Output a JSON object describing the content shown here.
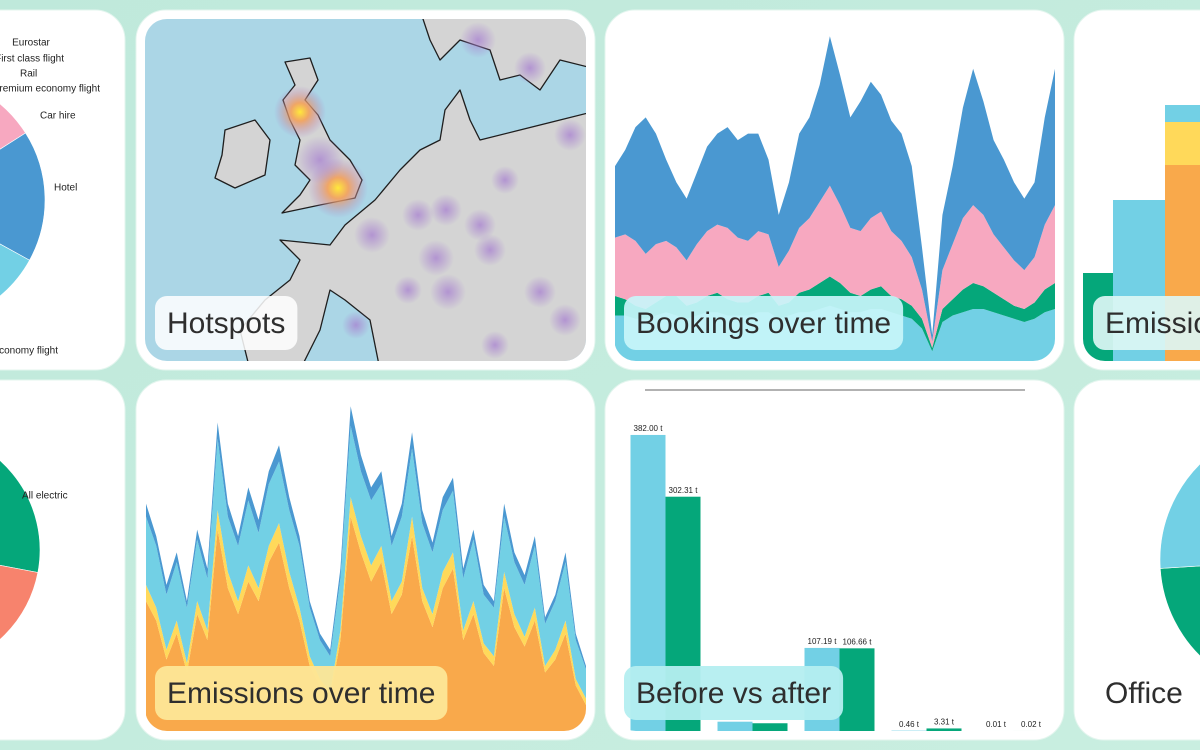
{
  "chart_data": [
    {
      "type": "pie",
      "categories": [
        "Eurostar",
        "First class flight",
        "Rail",
        "Premium economy flight",
        "Car hire",
        "Hotel",
        "Economy flight"
      ],
      "values": [
        0.5,
        0.5,
        1,
        5,
        9,
        17,
        67
      ],
      "colors": [
        "#05a77a",
        "#f7836d",
        "#8bd3a0",
        "#ffd95a",
        "#f7a8c0",
        "#4a98d1",
        "#72d0e5"
      ]
    },
    {
      "type": "map",
      "title": "Hotspots"
    },
    {
      "type": "area",
      "title": "Bookings over time",
      "ylim": [
        0,
        105
      ],
      "series": [
        {
          "color": "#72d0e5",
          "values": [
            14,
            14,
            13,
            13,
            14,
            15,
            14,
            13,
            14,
            15,
            15,
            14,
            14,
            14,
            15,
            15,
            13,
            14,
            15,
            15,
            16,
            17,
            16,
            15,
            15,
            16,
            16,
            15,
            14,
            13,
            10,
            3,
            12,
            14,
            15,
            16,
            16,
            15,
            14,
            13,
            12,
            13,
            15,
            16
          ]
        },
        {
          "color": "#05a77a",
          "values": [
            6,
            5,
            4,
            3,
            4,
            5,
            6,
            4,
            4,
            5,
            6,
            5,
            4,
            4,
            5,
            6,
            4,
            4,
            6,
            7,
            8,
            9,
            8,
            6,
            5,
            6,
            7,
            5,
            5,
            4,
            3,
            1,
            4,
            5,
            7,
            8,
            7,
            6,
            5,
            4,
            4,
            5,
            7,
            8
          ]
        },
        {
          "color": "#f7a8c0",
          "values": [
            18,
            20,
            20,
            17,
            18,
            17,
            15,
            14,
            18,
            20,
            21,
            22,
            20,
            19,
            20,
            18,
            12,
            16,
            20,
            22,
            25,
            28,
            24,
            20,
            20,
            22,
            23,
            20,
            18,
            15,
            9,
            2,
            12,
            17,
            22,
            24,
            22,
            18,
            16,
            14,
            12,
            14,
            20,
            24
          ]
        },
        {
          "color": "#4a98d1",
          "values": [
            22,
            26,
            35,
            42,
            34,
            25,
            20,
            19,
            22,
            26,
            28,
            31,
            30,
            33,
            30,
            23,
            16,
            21,
            29,
            31,
            36,
            46,
            40,
            34,
            40,
            42,
            36,
            34,
            33,
            28,
            13,
            2,
            17,
            24,
            34,
            42,
            35,
            29,
            27,
            24,
            22,
            23,
            33,
            42
          ]
        }
      ]
    },
    {
      "type": "bar",
      "title": "Emissions",
      "stacked": true,
      "categories": [
        null,
        null,
        null
      ],
      "ylim": [
        0,
        340
      ],
      "series": [
        {
          "color": "#05a77a",
          "values": [
            88,
            0,
            0
          ]
        },
        {
          "color": "#f9a94b",
          "values": [
            0,
            0,
            196
          ]
        },
        {
          "color": "#ffd95a",
          "values": [
            0,
            0,
            43
          ]
        },
        {
          "color": "#72d0e5",
          "values": [
            0,
            161,
            17
          ]
        }
      ]
    },
    {
      "type": "pie",
      "categories": [
        "All electric",
        null,
        null
      ],
      "values": [
        28,
        19,
        53
      ],
      "colors": [
        "#05a77a",
        "#f7836d",
        "#72d0e5"
      ]
    },
    {
      "type": "area",
      "title": "Emissions over time",
      "ylim": [
        0,
        105
      ],
      "series": [
        {
          "color": "#f9a94b",
          "values": [
            40,
            34,
            22,
            30,
            18,
            36,
            28,
            62,
            44,
            36,
            46,
            40,
            52,
            58,
            44,
            34,
            20,
            14,
            10,
            28,
            66,
            55,
            46,
            52,
            36,
            42,
            60,
            40,
            32,
            44,
            50,
            28,
            36,
            24,
            20,
            44,
            32,
            26,
            34,
            18,
            22,
            30,
            14,
            8
          ]
        },
        {
          "color": "#ffd95a",
          "values": [
            5,
            4,
            3,
            4,
            3,
            4,
            3,
            6,
            5,
            4,
            5,
            4,
            5,
            6,
            5,
            4,
            3,
            2,
            2,
            3,
            6,
            5,
            5,
            5,
            4,
            4,
            6,
            4,
            4,
            5,
            5,
            3,
            4,
            3,
            3,
            5,
            4,
            3,
            4,
            2,
            3,
            4,
            2,
            2
          ]
        },
        {
          "color": "#72d0e5",
          "values": [
            21,
            19,
            17,
            18,
            17,
            19,
            16,
            22,
            17,
            17,
            20,
            17,
            19,
            19,
            19,
            19,
            15,
            12,
            11,
            16,
            22,
            20,
            20,
            19,
            17,
            20,
            21,
            20,
            19,
            19,
            19,
            16,
            19,
            15,
            15,
            17,
            16,
            16,
            19,
            13,
            15,
            18,
            12,
            9
          ]
        },
        {
          "color": "#4a98d1",
          "values": [
            4,
            3,
            3,
            3,
            2,
            3,
            3,
            5,
            4,
            3,
            4,
            4,
            4,
            5,
            4,
            3,
            2,
            2,
            2,
            3,
            6,
            5,
            4,
            4,
            3,
            4,
            5,
            4,
            3,
            4,
            4,
            3,
            3,
            3,
            2,
            4,
            3,
            3,
            3,
            2,
            2,
            3,
            2,
            1
          ]
        }
      ]
    },
    {
      "type": "bar",
      "title": "Before vs after",
      "categories": [
        null,
        null,
        null,
        null,
        null
      ],
      "ylim": [
        0,
        440
      ],
      "series": [
        {
          "color": "#72d0e5",
          "values": [
            382,
            12,
            107.19,
            0.46,
            0.01
          ],
          "value_labels": [
            "382.00 t",
            null,
            "107.19 t",
            "0.46 t",
            "0.01 t"
          ]
        },
        {
          "color": "#05a77a",
          "values": [
            302.31,
            10,
            106.66,
            3.31,
            0.02
          ],
          "value_labels": [
            "302.31 t",
            null,
            "106.66 t",
            "3.31 t",
            "0.02 t"
          ]
        }
      ]
    },
    {
      "type": "pie",
      "title": "Office",
      "categories": [
        null,
        null,
        null,
        null
      ],
      "values": [
        47,
        27,
        18,
        8
      ],
      "colors": [
        "#f9a94b",
        "#05a77a",
        "#72d0e5",
        "#ffd95a"
      ]
    }
  ]
}
